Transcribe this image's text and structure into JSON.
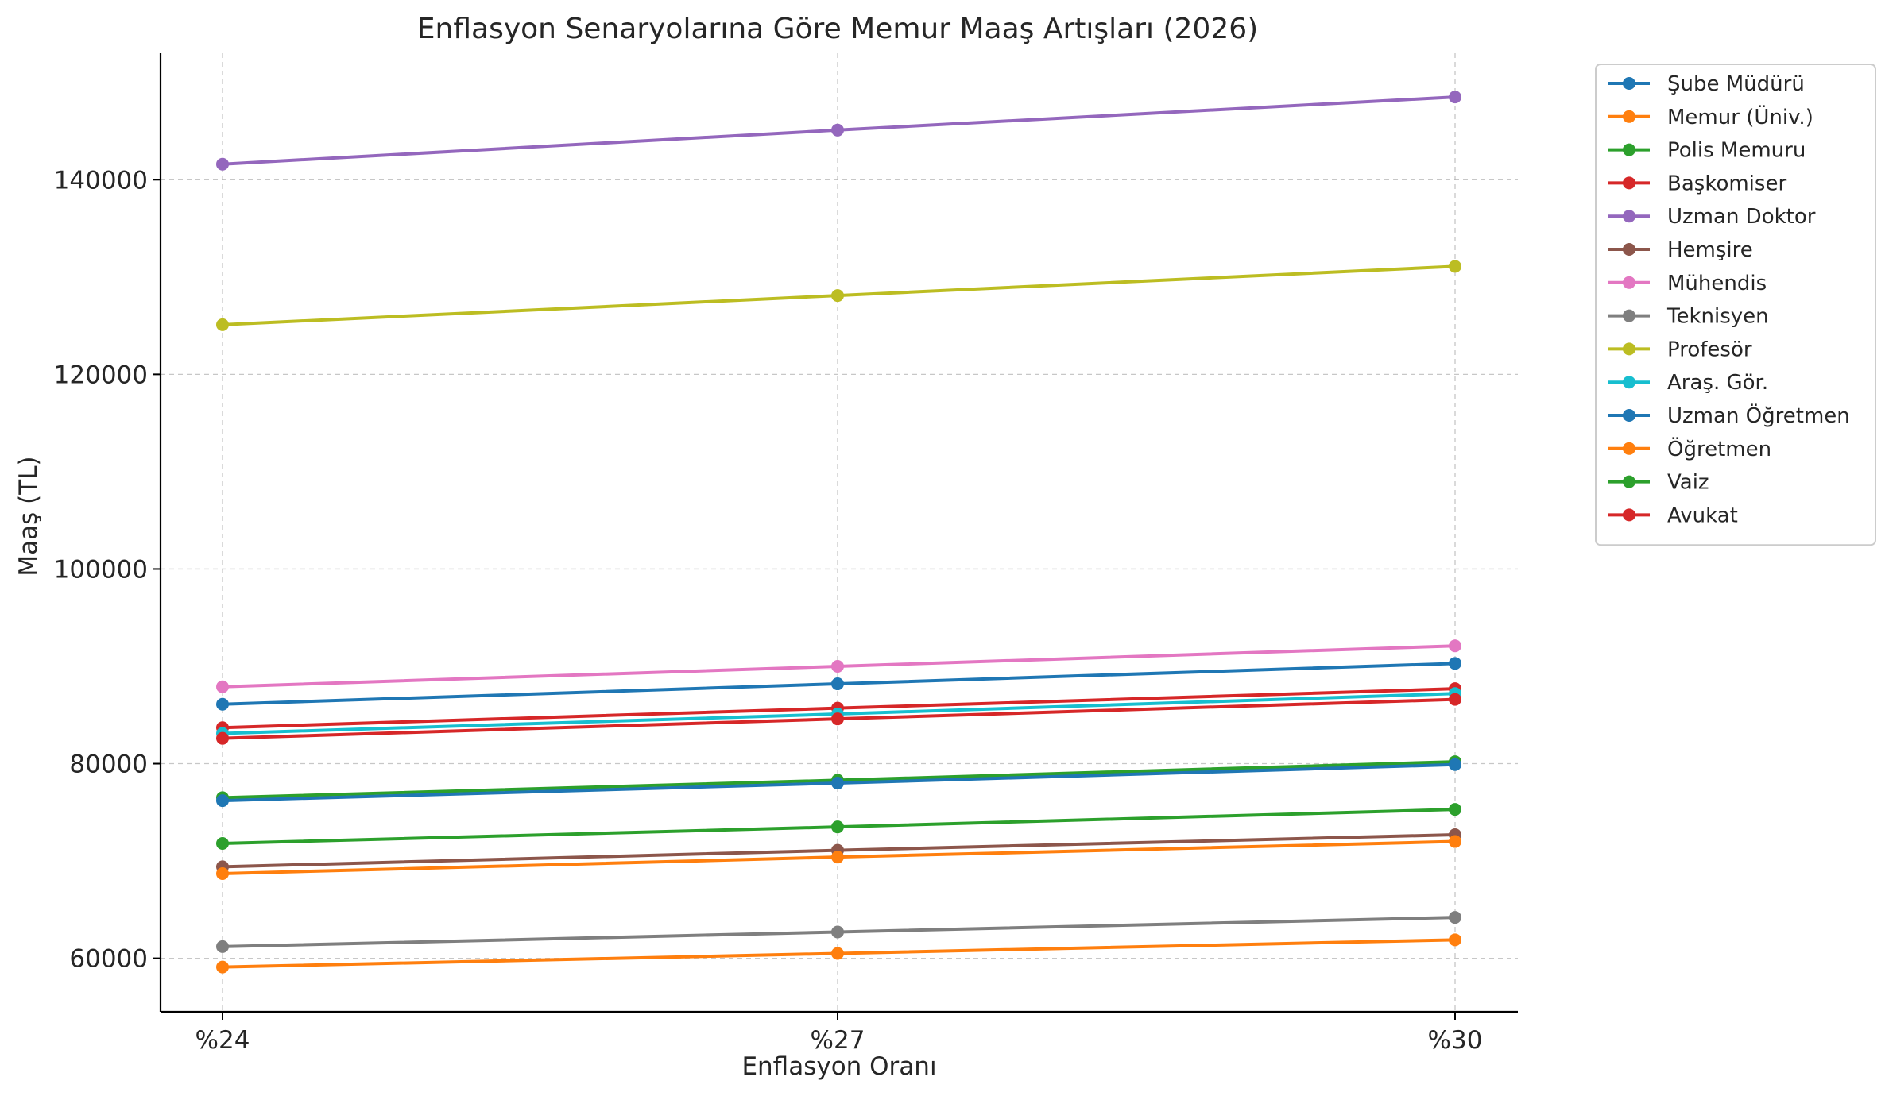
{
  "chart_data": {
    "type": "line",
    "title": "Enflasyon Senaryolarına Göre Memur Maaş Artışları (2026)",
    "xlabel": "Enflasyon Oranı",
    "ylabel": "Maaş (TL)",
    "categories": [
      "%24",
      "%27",
      "%30"
    ],
    "ylim": [
      54500,
      153000
    ],
    "yticks": [
      60000,
      80000,
      100000,
      120000,
      140000
    ],
    "ytick_labels": [
      "60000",
      "80000",
      "100000",
      "120000",
      "140000"
    ],
    "grid": true,
    "legend_position": "outside-right",
    "series": [
      {
        "name": "Şube Müdürü",
        "color": "#1f77b4",
        "values": [
          86100,
          88200,
          90300
        ]
      },
      {
        "name": "Memur (Üniv.)",
        "color": "#ff7f0e",
        "values": [
          59100,
          60500,
          61900
        ]
      },
      {
        "name": "Polis Memuru",
        "color": "#2ca02c",
        "values": [
          76500,
          78300,
          80200
        ]
      },
      {
        "name": "Başkomiser",
        "color": "#d62728",
        "values": [
          83700,
          85700,
          87700
        ]
      },
      {
        "name": "Uzman Doktor",
        "color": "#9467bd",
        "values": [
          141600,
          145100,
          148500
        ]
      },
      {
        "name": "Hemşire",
        "color": "#8c564b",
        "values": [
          69400,
          71100,
          72700
        ]
      },
      {
        "name": "Mühendis",
        "color": "#e377c2",
        "values": [
          87900,
          90000,
          92100
        ]
      },
      {
        "name": "Teknisyen",
        "color": "#7f7f7f",
        "values": [
          61200,
          62700,
          64200
        ]
      },
      {
        "name": "Profesör",
        "color": "#bcbd22",
        "values": [
          125100,
          128100,
          131100
        ]
      },
      {
        "name": "Araş. Gör.",
        "color": "#17becf",
        "values": [
          83100,
          85100,
          87200
        ]
      },
      {
        "name": "Uzman Öğretmen",
        "color": "#1f77b4",
        "values": [
          76200,
          78000,
          79900
        ]
      },
      {
        "name": "Öğretmen",
        "color": "#ff7f0e",
        "values": [
          68700,
          70400,
          72000
        ]
      },
      {
        "name": "Vaiz",
        "color": "#2ca02c",
        "values": [
          71800,
          73500,
          75300
        ]
      },
      {
        "name": "Avukat",
        "color": "#d62728",
        "values": [
          82600,
          84600,
          86600
        ]
      }
    ]
  }
}
